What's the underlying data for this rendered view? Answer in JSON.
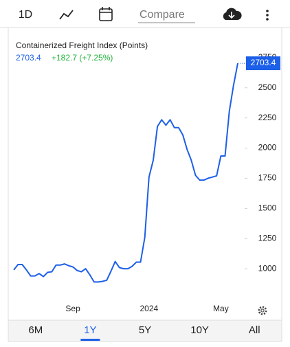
{
  "toolbar": {
    "interval": "1D",
    "compare_placeholder": "Compare"
  },
  "chart_data": {
    "type": "line",
    "change": "+182.7 (+7.25%)",
    "categories": [
      null,
      null,
      null,
      null,
      null,
      null,
      null,
      null,
      null,
      null,
      null,
      null,
      null,
      null,
      "Sep",
      null,
      null,
      null,
      null,
      null,
      null,
      null,
      null,
      null,
      null,
      null,
      null,
      null,
      null,
      null,
      null,
      null,
      "2024",
      null,
      null,
      null,
      null,
      null,
      null,
      null,
      null,
      null,
      null,
      null,
      null,
      null,
      null,
      null,
      null,
      "May",
      null,
      null,
      null,
      null
    ],
    "series": [
      {
        "name": "Containerized Freight Index (Points)",
        "color": "#1c5fe8",
        "values": [
          990,
          1035,
          1035,
          990,
          940,
          940,
          960,
          935,
          970,
          975,
          1030,
          1030,
          1040,
          1025,
          1015,
          985,
          975,
          1000,
          950,
          890,
          890,
          895,
          905,
          980,
          1060,
          1010,
          1000,
          1000,
          1020,
          1055,
          1055,
          1260,
          1760,
          1900,
          2180,
          2235,
          2190,
          2235,
          2170,
          2170,
          2110,
          1990,
          1900,
          1775,
          1735,
          1735,
          1750,
          1760,
          1770,
          1935,
          1935,
          2305,
          2520,
          2703.4
        ]
      }
    ],
    "ylim": [
      750,
      3000
    ],
    "yticks": [
      1000,
      1250,
      1500,
      1750,
      2000,
      2250,
      2500,
      2750
    ],
    "change_color": "#22b33a"
  },
  "ranges": [
    "6M",
    "1Y",
    "5Y",
    "10Y",
    "All"
  ],
  "selected_range": "1Y"
}
